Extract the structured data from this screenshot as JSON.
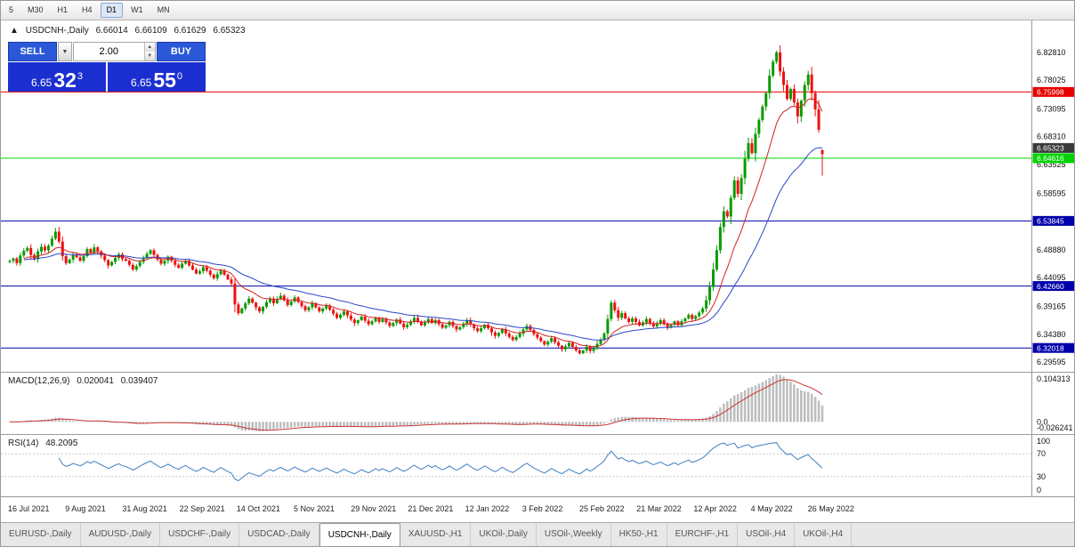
{
  "toolbar": {
    "timeframes": [
      {
        "label": "5",
        "active": false
      },
      {
        "label": "M30",
        "active": false
      },
      {
        "label": "H1",
        "active": false
      },
      {
        "label": "H4",
        "active": false
      },
      {
        "label": "D1",
        "active": true
      },
      {
        "label": "W1",
        "active": false
      },
      {
        "label": "MN",
        "active": false
      }
    ]
  },
  "chart_header": {
    "icon": "▲",
    "symbol": "USDCNH-,Daily",
    "open": "6.66014",
    "high": "6.66109",
    "low": "6.61629",
    "close": "6.65323"
  },
  "trade_panel": {
    "sell_label": "SELL",
    "buy_label": "BUY",
    "volume": "2.00",
    "dropdown_icon": "▼",
    "spin_up_icon": "▲",
    "spin_down_icon": "▼",
    "bid_small": "6.65",
    "bid_big": "32",
    "bid_sup": "3",
    "ask_small": "6.65",
    "ask_big": "55",
    "ask_sup": "0"
  },
  "macd_header": {
    "name": "MACD(12,26,9)",
    "value1": "0.020041",
    "value2": "0.039407"
  },
  "rsi_header": {
    "name": "RSI(14)",
    "value": "48.2095"
  },
  "colors": {
    "up": "#089b00",
    "down": "#ee1111",
    "ma_fast": "#d42020",
    "ma_slow": "#2b46c8",
    "macd_hist": "#bdbdbd",
    "macd_signal": "#cc3333",
    "rsi": "#3f7fc1",
    "level_red": "#e60000",
    "level_green": "#00d300",
    "level_blue": "#0000aa",
    "price_badge": "#3a3a3a"
  },
  "chart_data": {
    "type": "candlestick",
    "symbol": "USDCNH",
    "timeframe": "Daily",
    "price_range": [
      6.2808,
      6.8828
    ],
    "y_ticks": [
      {
        "v": 6.8281,
        "l": "6.82810"
      },
      {
        "v": 6.78025,
        "l": "6.78025"
      },
      {
        "v": 6.73095,
        "l": "6.73095"
      },
      {
        "v": 6.6831,
        "l": "6.68310"
      },
      {
        "v": 6.63525,
        "l": "6.63525"
      },
      {
        "v": 6.58595,
        "l": "6.58595"
      },
      {
        "v": 6.4888,
        "l": "6.48880"
      },
      {
        "v": 6.44095,
        "l": "6.44095"
      },
      {
        "v": 6.39165,
        "l": "6.39165"
      },
      {
        "v": 6.3438,
        "l": "6.34380"
      },
      {
        "v": 6.29595,
        "l": "6.29595"
      }
    ],
    "levels": [
      {
        "value": 6.75998,
        "label": "6.75998",
        "color": "#e60000",
        "type": "line"
      },
      {
        "value": 6.64616,
        "label": "6.64616",
        "color": "#00d300",
        "type": "line"
      },
      {
        "value": 6.53845,
        "label": "6.53845",
        "color": "#0000aa",
        "type": "line"
      },
      {
        "value": 6.4266,
        "label": "6.42660",
        "color": "#0000aa",
        "type": "line"
      },
      {
        "value": 6.32018,
        "label": "6.32018",
        "color": "#0000aa",
        "type": "line"
      },
      {
        "value": 6.65323,
        "label": "6.65323",
        "color": "#3a3a3a",
        "type": "price"
      }
    ],
    "x_labels": [
      "16 Jul 2021",
      "9 Aug 2021",
      "31 Aug 2021",
      "22 Sep 2021",
      "14 Oct 2021",
      "5 Nov 2021",
      "29 Nov 2021",
      "21 Dec 2021",
      "12 Jan 2022",
      "3 Feb 2022",
      "25 Feb 2022",
      "21 Mar 2022",
      "12 Apr 2022",
      "4 May 2022",
      "26 May 2022"
    ],
    "candles": {
      "first_open": 6.468,
      "last": {
        "open": 6.66014,
        "high": 6.66109,
        "low": 6.61629,
        "close": 6.65323
      },
      "closes": [
        6.47,
        6.474,
        6.466,
        6.479,
        6.487,
        6.492,
        6.48,
        6.473,
        6.486,
        6.494,
        6.488,
        6.496,
        6.508,
        6.52,
        6.503,
        6.478,
        6.466,
        6.472,
        6.481,
        6.476,
        6.47,
        6.478,
        6.49,
        6.484,
        6.493,
        6.486,
        6.479,
        6.471,
        6.462,
        6.468,
        6.475,
        6.481,
        6.473,
        6.47,
        6.463,
        6.455,
        6.461,
        6.468,
        6.475,
        6.482,
        6.488,
        6.48,
        6.472,
        6.465,
        6.47,
        6.477,
        6.47,
        6.463,
        6.458,
        6.465,
        6.47,
        6.462,
        6.455,
        6.448,
        6.452,
        6.459,
        6.453,
        6.446,
        6.44,
        6.447,
        6.453,
        6.446,
        6.438,
        6.431,
        6.395,
        6.38,
        6.388,
        6.397,
        6.405,
        6.398,
        6.39,
        6.383,
        6.391,
        6.399,
        6.405,
        6.397,
        6.404,
        6.41,
        6.402,
        6.394,
        6.4,
        6.407,
        6.399,
        6.392,
        6.385,
        6.39,
        6.397,
        6.39,
        6.383,
        6.388,
        6.393,
        6.386,
        6.379,
        6.372,
        6.377,
        6.383,
        6.376,
        6.369,
        6.363,
        6.368,
        6.374,
        6.367,
        6.361,
        6.366,
        6.372,
        6.365,
        6.37,
        6.364,
        6.358,
        6.363,
        6.369,
        6.362,
        6.356,
        6.36,
        6.366,
        6.372,
        6.365,
        6.359,
        6.364,
        6.37,
        6.363,
        6.368,
        6.361,
        6.355,
        6.359,
        6.365,
        6.358,
        6.352,
        6.356,
        6.362,
        6.368,
        6.361,
        6.354,
        6.349,
        6.354,
        6.36,
        6.354,
        6.347,
        6.341,
        6.346,
        6.352,
        6.345,
        6.339,
        6.334,
        6.339,
        6.345,
        6.352,
        6.358,
        6.351,
        6.344,
        6.338,
        6.332,
        6.326,
        6.331,
        6.337,
        6.33,
        6.324,
        6.318,
        6.323,
        6.329,
        6.322,
        6.316,
        6.311,
        6.316,
        6.322,
        6.315,
        6.32,
        6.327,
        6.334,
        6.345,
        6.37,
        6.398,
        6.385,
        6.372,
        6.38,
        6.371,
        6.365,
        6.371,
        6.365,
        6.359,
        6.364,
        6.37,
        6.363,
        6.357,
        6.362,
        6.368,
        6.361,
        6.355,
        6.36,
        6.366,
        6.359,
        6.366,
        6.371,
        6.377,
        6.37,
        6.375,
        6.381,
        6.388,
        6.402,
        6.425,
        6.455,
        6.488,
        6.528,
        6.555,
        6.546,
        6.578,
        6.608,
        6.585,
        6.612,
        6.645,
        6.672,
        6.655,
        6.688,
        6.712,
        6.735,
        6.758,
        6.788,
        6.812,
        6.828,
        6.795,
        6.772,
        6.748,
        6.765,
        6.742,
        6.718,
        6.745,
        6.772,
        6.79,
        6.758,
        6.73,
        6.695,
        6.653
      ]
    },
    "ma": [
      {
        "period": 13,
        "role": "fast"
      },
      {
        "period": 34,
        "role": "slow"
      }
    ],
    "macd": {
      "params": "12,26,9",
      "axis": [
        {
          "v": 0.104313,
          "l": "0.104313"
        },
        {
          "v": 0.0,
          "l": "0.0"
        },
        {
          "v": -0.026241,
          "l": "-0.026241"
        }
      ]
    },
    "rsi": {
      "period": 14,
      "levels": [
        70,
        30
      ],
      "axis": [
        {
          "v": 100,
          "l": "100"
        },
        {
          "v": 70,
          "l": "70"
        },
        {
          "v": 30,
          "l": "30"
        },
        {
          "v": 0,
          "l": "0"
        }
      ]
    }
  },
  "tabs": [
    {
      "label": "EURUSD-,Daily",
      "active": false
    },
    {
      "label": "AUDUSD-,Daily",
      "active": false
    },
    {
      "label": "USDCHF-,Daily",
      "active": false
    },
    {
      "label": "USDCAD-,Daily",
      "active": false
    },
    {
      "label": "USDCNH-,Daily",
      "active": true
    },
    {
      "label": "XAUUSD-,H1",
      "active": false
    },
    {
      "label": "UKOil-,Daily",
      "active": false
    },
    {
      "label": "USOil-,Weekly",
      "active": false
    },
    {
      "label": "HK50-,H1",
      "active": false
    },
    {
      "label": "EURCHF-,H1",
      "active": false
    },
    {
      "label": "USOil-,H4",
      "active": false
    },
    {
      "label": "UKOil-,H4",
      "active": false
    }
  ]
}
